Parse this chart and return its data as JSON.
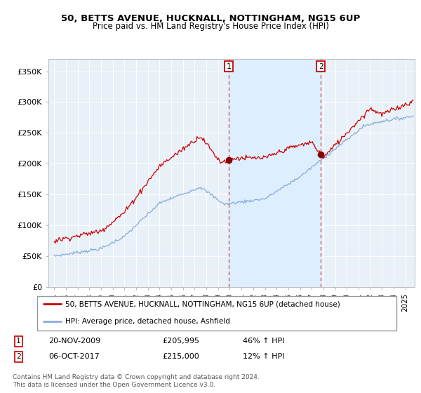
{
  "title": "50, BETTS AVENUE, HUCKNALL, NOTTINGHAM, NG15 6UP",
  "subtitle": "Price paid vs. HM Land Registry's House Price Index (HPI)",
  "ylabel_ticks": [
    "£0",
    "£50K",
    "£100K",
    "£150K",
    "£200K",
    "£250K",
    "£300K",
    "£350K"
  ],
  "ylim": [
    0,
    370000
  ],
  "yticks": [
    0,
    50000,
    100000,
    150000,
    200000,
    250000,
    300000,
    350000
  ],
  "sale1_x": 2009.9,
  "sale1_y": 205995,
  "sale2_x": 2017.78,
  "sale2_y": 215000,
  "sale1_date": "20-NOV-2009",
  "sale1_price": "£205,995",
  "sale1_hpi": "46% ↑ HPI",
  "sale2_date": "06-OCT-2017",
  "sale2_price": "£215,000",
  "sale2_hpi": "12% ↑ HPI",
  "legend_entry1": "50, BETTS AVENUE, HUCKNALL, NOTTINGHAM, NG15 6UP (detached house)",
  "legend_entry2": "HPI: Average price, detached house, Ashfield",
  "footer": "Contains HM Land Registry data © Crown copyright and database right 2024.\nThis data is licensed under the Open Government Licence v3.0.",
  "line_color_red": "#cc0000",
  "line_color_blue": "#88aadd",
  "vline_color": "#cc4444",
  "shade_color": "#ddeeff",
  "background_color": "#e8f0f8",
  "xlim_left": 1994.5,
  "xlim_right": 2025.8
}
